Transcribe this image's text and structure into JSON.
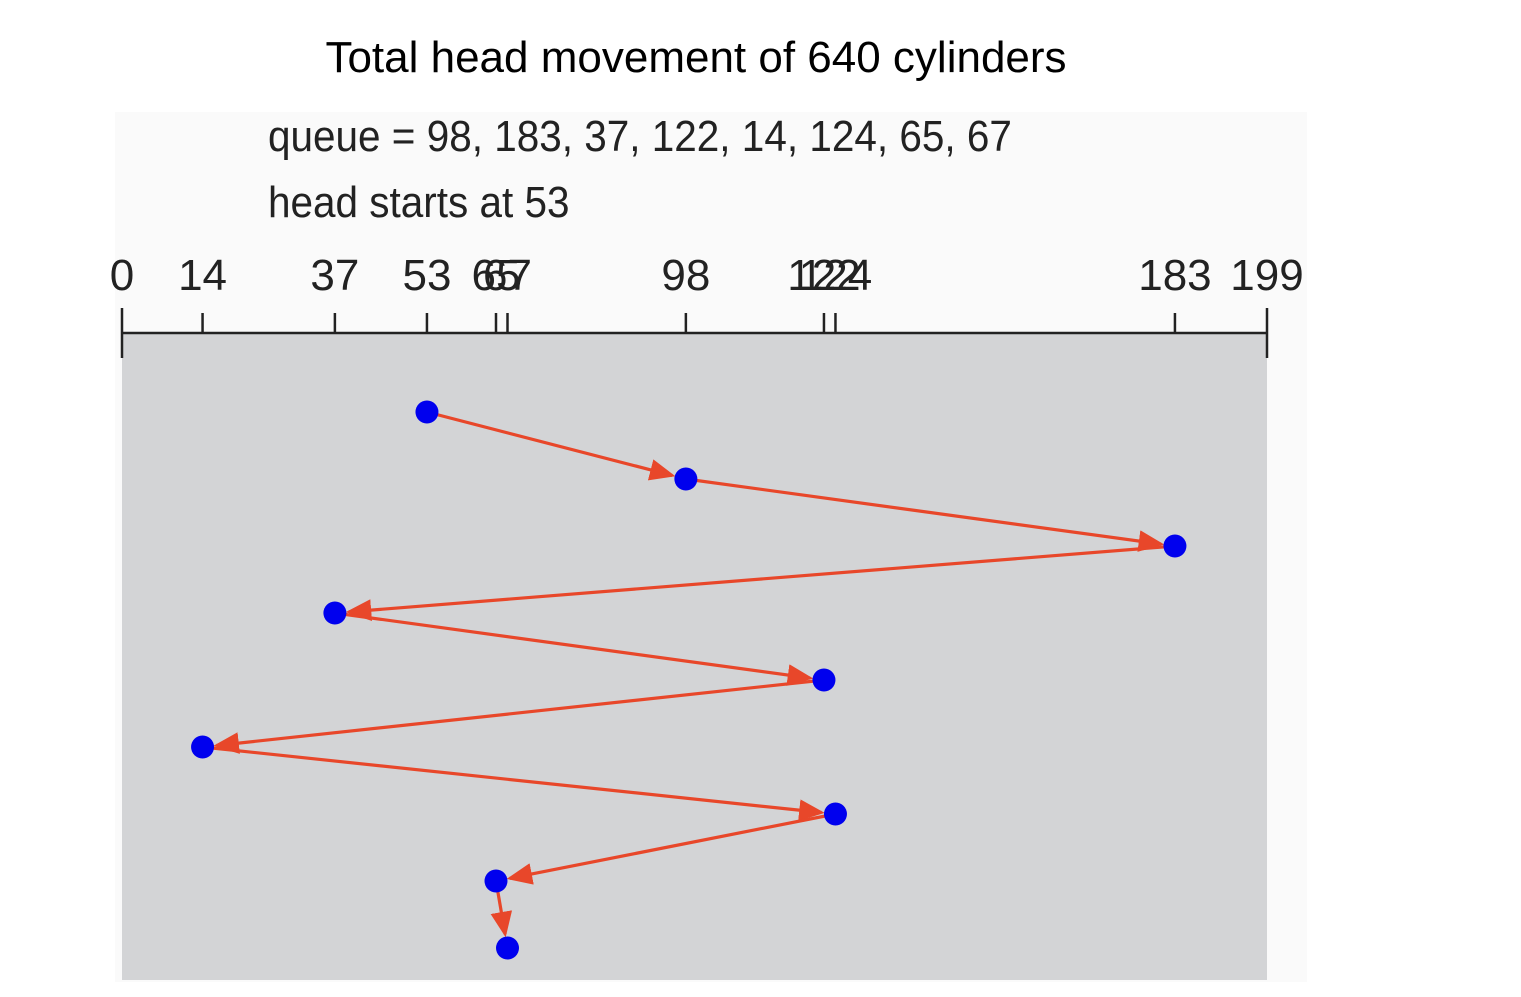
{
  "title": "Total head movement of 640 cylinders",
  "queue_text": "queue = 98, 183, 37, 122, 14, 124, 65, 67",
  "head_text": "head starts at 53",
  "colors": {
    "area": "#d3d4d6",
    "point": "#0000ee",
    "arrow": "#e8472a",
    "axis": "#222222"
  },
  "chart_data": {
    "type": "line",
    "xlim": [
      0,
      199
    ],
    "ticks": [
      0,
      14,
      37,
      53,
      65,
      67,
      98,
      122,
      124,
      183,
      199
    ],
    "tick_labels": [
      "0",
      "14",
      "37",
      "53",
      "65",
      "67",
      "98",
      "122",
      "124",
      "183",
      "199"
    ],
    "head_start": 53,
    "queue": [
      98,
      183,
      37,
      122,
      14,
      124,
      65,
      67
    ],
    "path": [
      53,
      98,
      183,
      37,
      122,
      14,
      124,
      65,
      67
    ],
    "total_head_movement": 640
  }
}
